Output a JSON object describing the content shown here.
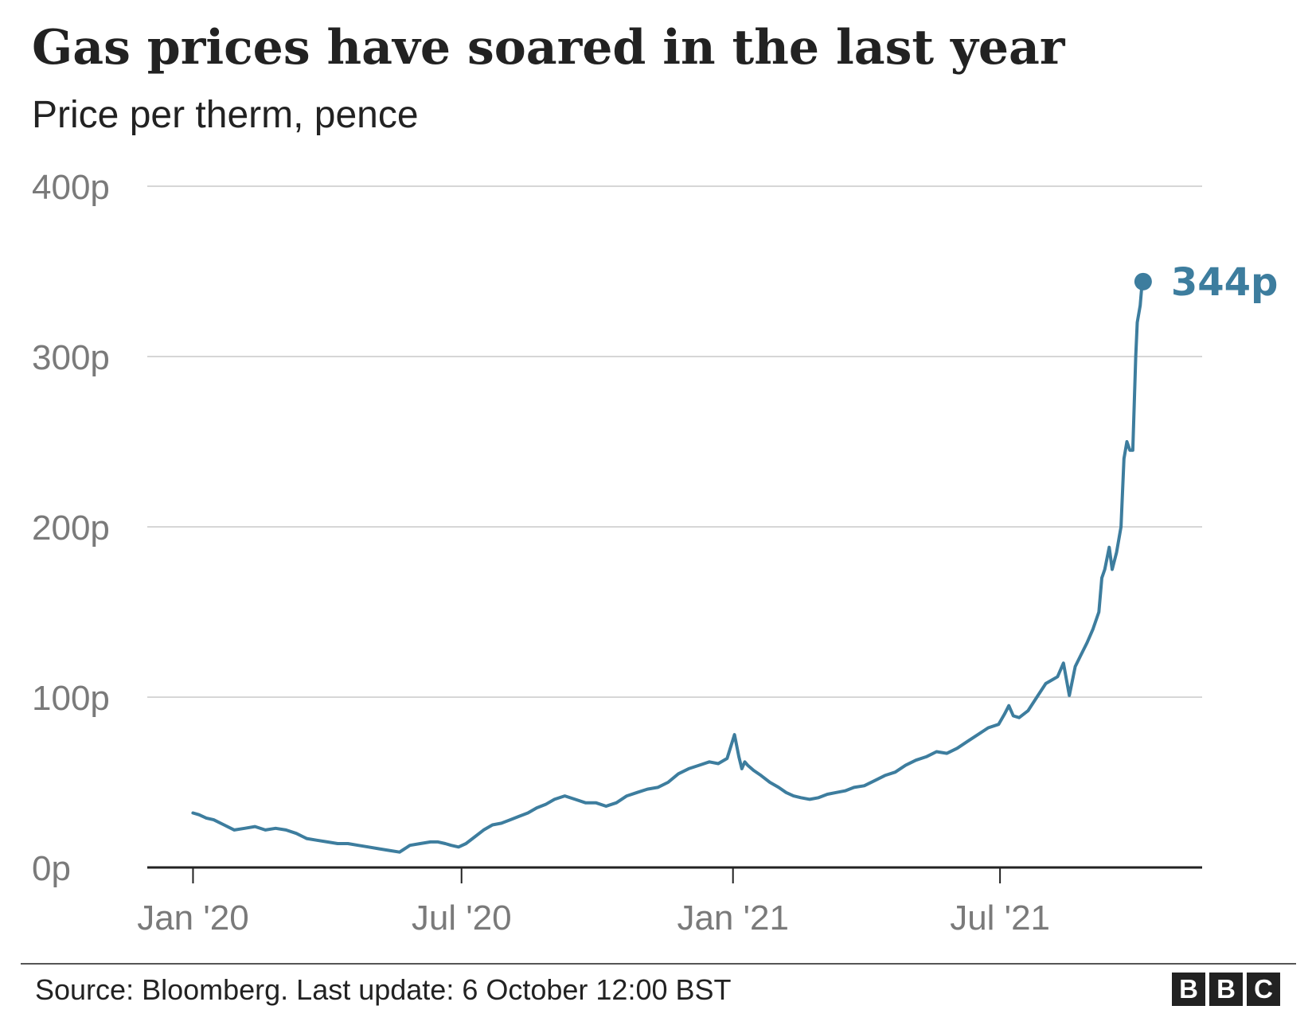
{
  "title": "Gas prices have soared in the last year",
  "subtitle": "Price per therm, pence",
  "source": "Source: Bloomberg. Last update: 6 October 12:00 BST",
  "logo": [
    "B",
    "B",
    "C"
  ],
  "colors": {
    "line": "#3d7d9e",
    "grid": "#d6d6d6",
    "axis": "#222222",
    "text": "#222222",
    "tick_text": "#7a7a7a"
  },
  "chart_data": {
    "type": "line",
    "title": "Gas prices have soared in the last year",
    "subtitle": "Price per therm, pence",
    "xlabel": "",
    "ylabel": "",
    "ylim": [
      0,
      400
    ],
    "xlim": [
      "2019-12-01",
      "2021-11-15"
    ],
    "yticks": [
      0,
      100,
      200,
      300,
      400
    ],
    "yticklabels": [
      "0p",
      "100p",
      "200p",
      "300p",
      "400p"
    ],
    "xticks": [
      "2020-01-01",
      "2020-07-01",
      "2021-01-01",
      "2021-07-01"
    ],
    "xticklabels": [
      "Jan '20",
      "Jul '20",
      "Jan '21",
      "Jul '21"
    ],
    "grid": true,
    "legend": "none",
    "end_label": "344p",
    "series": [
      {
        "x": [
          "2020-01-01",
          "2020-01-05",
          "2020-01-10",
          "2020-01-15",
          "2020-01-22",
          "2020-01-29",
          "2020-02-05",
          "2020-02-12",
          "2020-02-19",
          "2020-02-26",
          "2020-03-04",
          "2020-03-11",
          "2020-03-18",
          "2020-03-25",
          "2020-04-01",
          "2020-04-08",
          "2020-04-15",
          "2020-04-22",
          "2020-04-29",
          "2020-05-06",
          "2020-05-13",
          "2020-05-20",
          "2020-05-27",
          "2020-06-03",
          "2020-06-10",
          "2020-06-15",
          "2020-06-20",
          "2020-06-24",
          "2020-06-29",
          "2020-07-04",
          "2020-07-10",
          "2020-07-16",
          "2020-07-22",
          "2020-07-28",
          "2020-08-03",
          "2020-08-09",
          "2020-08-15",
          "2020-08-21",
          "2020-08-27",
          "2020-09-02",
          "2020-09-09",
          "2020-09-16",
          "2020-09-23",
          "2020-09-30",
          "2020-10-07",
          "2020-10-14",
          "2020-10-21",
          "2020-10-28",
          "2020-11-04",
          "2020-11-11",
          "2020-11-18",
          "2020-11-25",
          "2020-12-02",
          "2020-12-09",
          "2020-12-16",
          "2020-12-22",
          "2020-12-28",
          "2021-01-02",
          "2021-01-05",
          "2021-01-07",
          "2021-01-09",
          "2021-01-11",
          "2021-01-15",
          "2021-01-20",
          "2021-01-26",
          "2021-02-01",
          "2021-02-06",
          "2021-02-11",
          "2021-02-16",
          "2021-02-22",
          "2021-02-28",
          "2021-03-06",
          "2021-03-12",
          "2021-03-18",
          "2021-03-24",
          "2021-03-31",
          "2021-04-07",
          "2021-04-14",
          "2021-04-21",
          "2021-04-28",
          "2021-05-05",
          "2021-05-12",
          "2021-05-19",
          "2021-05-26",
          "2021-06-02",
          "2021-06-09",
          "2021-06-16",
          "2021-06-23",
          "2021-06-30",
          "2021-07-04",
          "2021-07-07",
          "2021-07-10",
          "2021-07-14",
          "2021-07-20",
          "2021-07-26",
          "2021-08-01",
          "2021-08-05",
          "2021-08-09",
          "2021-08-13",
          "2021-08-17",
          "2021-08-21",
          "2021-08-25",
          "2021-08-29",
          "2021-09-02",
          "2021-09-06",
          "2021-09-08",
          "2021-09-10",
          "2021-09-13",
          "2021-09-15",
          "2021-09-18",
          "2021-09-21",
          "2021-09-23",
          "2021-09-25",
          "2021-09-27",
          "2021-09-29",
          "2021-10-01",
          "2021-10-02",
          "2021-10-04",
          "2021-10-05",
          "2021-10-06"
        ],
        "values": [
          32,
          31,
          29,
          28,
          25,
          22,
          23,
          24,
          22,
          23,
          22,
          20,
          17,
          16,
          15,
          14,
          14,
          13,
          12,
          11,
          10,
          9,
          13,
          14,
          15,
          15,
          14,
          13,
          12,
          14,
          18,
          22,
          25,
          26,
          28,
          30,
          32,
          35,
          37,
          40,
          42,
          40,
          38,
          38,
          36,
          38,
          42,
          44,
          46,
          47,
          50,
          55,
          58,
          60,
          62,
          61,
          64,
          78,
          65,
          58,
          62,
          60,
          57,
          54,
          50,
          47,
          44,
          42,
          41,
          40,
          41,
          43,
          44,
          45,
          47,
          48,
          51,
          54,
          56,
          60,
          63,
          65,
          68,
          67,
          70,
          74,
          78,
          82,
          84,
          90,
          95,
          89,
          88,
          92,
          100,
          108,
          110,
          112,
          120,
          101,
          118,
          125,
          132,
          140,
          150,
          170,
          175,
          188,
          175,
          185,
          200,
          240,
          250,
          245,
          245,
          300,
          320,
          330,
          340,
          344
        ]
      }
    ]
  }
}
